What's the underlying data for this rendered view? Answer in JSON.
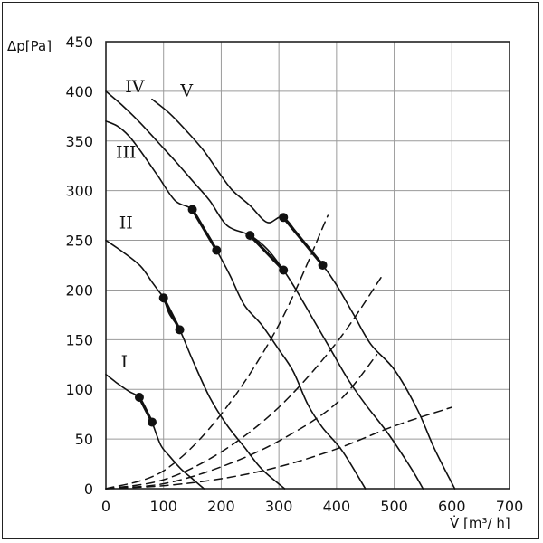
{
  "chart_data": {
    "type": "line",
    "title": "",
    "xlabel": "V̇ [m³/ h]",
    "ylabel": "Δp[Pa]",
    "xlim": [
      0,
      700
    ],
    "ylim": [
      0,
      450
    ],
    "x_ticks": [
      "0",
      "100",
      "200",
      "300",
      "400",
      "500",
      "600",
      "700"
    ],
    "y_ticks": [
      "0",
      "50",
      "100",
      "150",
      "200",
      "250",
      "300",
      "350",
      "400",
      "450"
    ],
    "grid": true,
    "series": [
      {
        "name": "I",
        "style": "solid",
        "x": [
          0,
          20,
          40,
          58,
          70,
          80,
          95,
          110,
          130,
          150,
          170
        ],
        "y": [
          115,
          106,
          98,
          92,
          80,
          67,
          44,
          33,
          20,
          10,
          0
        ],
        "operating_points": [
          [
            58,
            92
          ],
          [
            80,
            67
          ]
        ]
      },
      {
        "name": "II",
        "style": "solid",
        "x": [
          0,
          30,
          60,
          80,
          90,
          100,
          110,
          128,
          150,
          180,
          210,
          240,
          270,
          310
        ],
        "y": [
          250,
          238,
          224,
          208,
          200,
          192,
          176,
          160,
          130,
          92,
          64,
          42,
          20,
          0
        ],
        "operating_points": [
          [
            100,
            192
          ],
          [
            128,
            160
          ]
        ]
      },
      {
        "name": "III",
        "style": "solid",
        "x": [
          0,
          20,
          40,
          60,
          90,
          120,
          150,
          170,
          192,
          215,
          240,
          270,
          300,
          325,
          350,
          375,
          410,
          450
        ],
        "y": [
          370,
          365,
          355,
          340,
          315,
          290,
          281,
          262,
          240,
          215,
          185,
          165,
          140,
          118,
          85,
          62,
          38,
          0
        ],
        "operating_points": [
          [
            150,
            281
          ],
          [
            192,
            240
          ]
        ]
      },
      {
        "name": "IV",
        "style": "solid",
        "x": [
          0,
          30,
          60,
          90,
          120,
          150,
          180,
          210,
          250,
          280,
          308,
          330,
          360,
          390,
          420,
          450,
          490,
          530,
          550
        ],
        "y": [
          400,
          385,
          368,
          349,
          330,
          310,
          290,
          265,
          255,
          241,
          220,
          200,
          170,
          140,
          110,
          85,
          55,
          20,
          0
        ],
        "operating_points": [
          [
            250,
            255
          ],
          [
            308,
            220
          ]
        ]
      },
      {
        "name": "V",
        "style": "solid",
        "x": [
          80,
          110,
          140,
          170,
          200,
          220,
          250,
          280,
          308,
          340,
          376,
          400,
          430,
          460,
          500,
          540,
          570,
          605
        ],
        "y": [
          392,
          378,
          360,
          340,
          315,
          300,
          285,
          268,
          273,
          250,
          225,
          205,
          175,
          145,
          120,
          80,
          40,
          0
        ],
        "operating_points": [
          [
            308,
            273
          ],
          [
            376,
            225
          ]
        ]
      },
      {
        "name": "",
        "style": "dashed",
        "x": [
          0,
          100,
          200,
          300,
          385
        ],
        "y": [
          0,
          18,
          75,
          165,
          275
        ]
      },
      {
        "name": "",
        "style": "dashed",
        "x": [
          0,
          100,
          200,
          300,
          400,
          480
        ],
        "y": [
          0,
          9,
          37,
          82,
          147,
          215
        ]
      },
      {
        "name": "",
        "style": "dashed",
        "x": [
          0,
          100,
          200,
          300,
          400,
          470
        ],
        "y": [
          0,
          5,
          22,
          48,
          86,
          135
        ]
      },
      {
        "name": "",
        "style": "dashed",
        "x": [
          0,
          100,
          200,
          300,
          400,
          500,
          600
        ],
        "y": [
          0,
          3,
          10,
          22,
          40,
          63,
          82
        ]
      }
    ],
    "series_labels": [
      {
        "text": "I",
        "x": 32,
        "y": 122
      },
      {
        "text": "II",
        "x": 35,
        "y": 262
      },
      {
        "text": "III",
        "x": 35,
        "y": 333
      },
      {
        "text": "IV",
        "x": 50,
        "y": 399
      },
      {
        "text": "V",
        "x": 140,
        "y": 395
      }
    ]
  }
}
